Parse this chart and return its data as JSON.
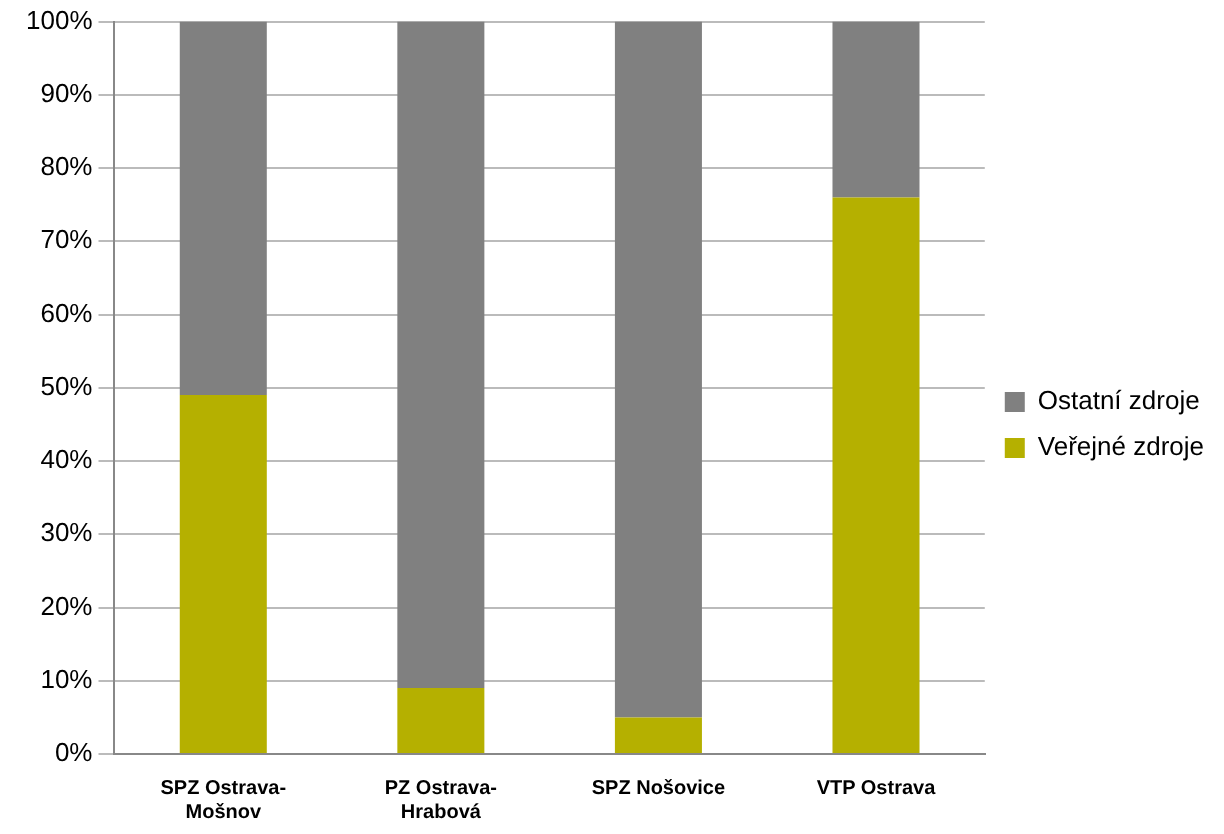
{
  "chart_data": {
    "type": "bar",
    "stacked": true,
    "categories": [
      "SPZ Ostrava-Mošnov",
      "PZ Ostrava-Hrabová",
      "SPZ Nošovice",
      "VTP Ostrava"
    ],
    "series": [
      {
        "name": "Veřejné zdroje",
        "color": "#b5b000",
        "values": [
          49,
          9,
          5,
          76
        ]
      },
      {
        "name": "Ostatní zdroje",
        "color": "#808080",
        "values": [
          51,
          91,
          95,
          24
        ]
      }
    ],
    "ylim": [
      0,
      100
    ],
    "yticks": [
      {
        "value": 0,
        "label": "0%"
      },
      {
        "value": 10,
        "label": "10%"
      },
      {
        "value": 20,
        "label": "20%"
      },
      {
        "value": 30,
        "label": "30%"
      },
      {
        "value": 40,
        "label": "40%"
      },
      {
        "value": 50,
        "label": "50%"
      },
      {
        "value": 60,
        "label": "60%"
      },
      {
        "value": 70,
        "label": "70%"
      },
      {
        "value": 80,
        "label": "80%"
      },
      {
        "value": 90,
        "label": "90%"
      },
      {
        "value": 100,
        "label": "100%"
      }
    ],
    "grid": "y",
    "legend": "right"
  }
}
